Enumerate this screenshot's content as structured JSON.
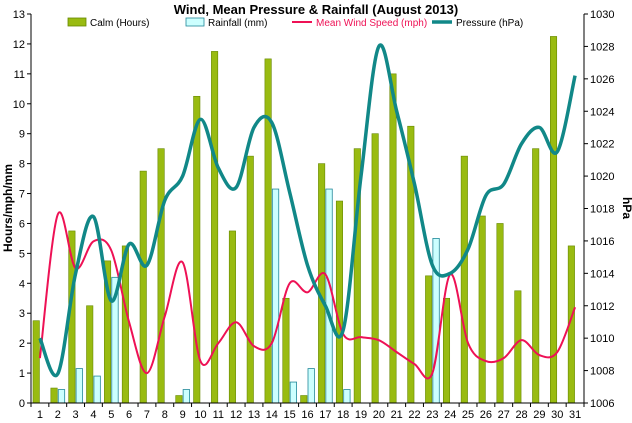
{
  "chart_data": {
    "type": "bar",
    "title": "Wind, Mean Pressure & Rainfall (August 2013)",
    "ylabel_left": "Hours/mph/mm",
    "ylabel_right": "hPa",
    "xlabel": "",
    "categories": [
      "1",
      "2",
      "3",
      "4",
      "5",
      "6",
      "7",
      "8",
      "9",
      "10",
      "11",
      "12",
      "13",
      "14",
      "15",
      "16",
      "17",
      "18",
      "19",
      "20",
      "21",
      "22",
      "23",
      "24",
      "25",
      "26",
      "27",
      "28",
      "29",
      "30",
      "31"
    ],
    "ylim_left": [
      0,
      13
    ],
    "ylim_right": [
      1006,
      1030
    ],
    "yticks_left": [
      "0",
      "1",
      "2",
      "3",
      "4",
      "5",
      "6",
      "7",
      "8",
      "9",
      "10",
      "11",
      "12",
      "13"
    ],
    "yticks_right": [
      "1006",
      "1008",
      "1010",
      "1012",
      "1014",
      "1016",
      "1018",
      "1020",
      "1022",
      "1024",
      "1026",
      "1028",
      "1030"
    ],
    "grid": false,
    "legend_position": "top",
    "series": [
      {
        "name": "Calm (Hours)",
        "kind": "bar",
        "axis": "left",
        "color": "#99bb11",
        "values": [
          2.75,
          0.5,
          5.75,
          3.25,
          4.75,
          5.25,
          7.75,
          8.5,
          0.25,
          10.25,
          11.75,
          5.75,
          8.25,
          11.5,
          3.5,
          0.25,
          8.0,
          6.75,
          8.5,
          9.0,
          11.0,
          9.25,
          4.25,
          3.5,
          8.25,
          6.25,
          6.0,
          3.75,
          8.5,
          12.25,
          5.25
        ]
      },
      {
        "name": "Rainfall (mm)",
        "kind": "bar",
        "axis": "left",
        "color": "#ccffff",
        "values": [
          0,
          0.45,
          1.15,
          0.9,
          4.2,
          0,
          0,
          0,
          0.45,
          0,
          0,
          0,
          0,
          7.15,
          0.7,
          1.15,
          7.15,
          0.45,
          0,
          0,
          0,
          0,
          5.5,
          0,
          0,
          0,
          0,
          0,
          0,
          0,
          0
        ]
      },
      {
        "name": "Mean Wind Speed (mph)",
        "kind": "line",
        "axis": "left",
        "color": "#ee1155",
        "values": [
          1.5,
          6.3,
          4.5,
          5.4,
          5.1,
          2.7,
          1.0,
          2.9,
          4.7,
          1.4,
          2.0,
          2.7,
          1.9,
          2.0,
          4.0,
          3.7,
          4.3,
          2.3,
          2.2,
          2.1,
          1.7,
          1.3,
          1.0,
          4.3,
          2.0,
          1.4,
          1.5,
          2.1,
          1.6,
          1.7,
          3.2
        ]
      },
      {
        "name": "Pressure (hPa)",
        "kind": "line",
        "axis": "right",
        "color": "#118888",
        "values": [
          1010.0,
          1007.8,
          1014.0,
          1017.5,
          1012.3,
          1015.8,
          1014.5,
          1018.5,
          1020.0,
          1023.5,
          1020.5,
          1019.3,
          1023.0,
          1023.3,
          1019.0,
          1014.5,
          1012.0,
          1010.5,
          1020.0,
          1028.0,
          1024.0,
          1019.5,
          1014.5,
          1014.0,
          1015.5,
          1018.8,
          1019.5,
          1022.0,
          1023.0,
          1021.5,
          1026.2
        ]
      }
    ]
  }
}
